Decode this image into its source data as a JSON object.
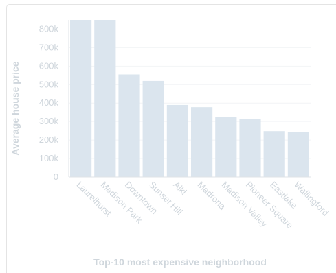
{
  "chart_data": {
    "type": "bar",
    "title": "",
    "xlabel": "Top-10 most expensive neighborhood",
    "ylabel": "Average house price",
    "categories": [
      "Laurelhurst",
      "Madison Park",
      "Downtown",
      "Sunset Hill",
      "Alki",
      "Madrona",
      "Madison Valley",
      "Pioneer Square",
      "Eastlake",
      "Wallingford"
    ],
    "values": [
      850000,
      850000,
      555000,
      520000,
      390000,
      378000,
      325000,
      313000,
      248000,
      245000
    ],
    "ylim": [
      0,
      850000
    ],
    "yticks": [
      0,
      100000,
      200000,
      300000,
      400000,
      500000,
      600000,
      700000,
      800000
    ],
    "ytick_labels": [
      "0",
      "100k",
      "200k",
      "300k",
      "400k",
      "500k",
      "600k",
      "700k",
      "800k"
    ],
    "grid": true,
    "colors": {
      "bar": "#dbe5ee",
      "text": "#cfd6dc",
      "axis": "#dfe3e7"
    }
  }
}
